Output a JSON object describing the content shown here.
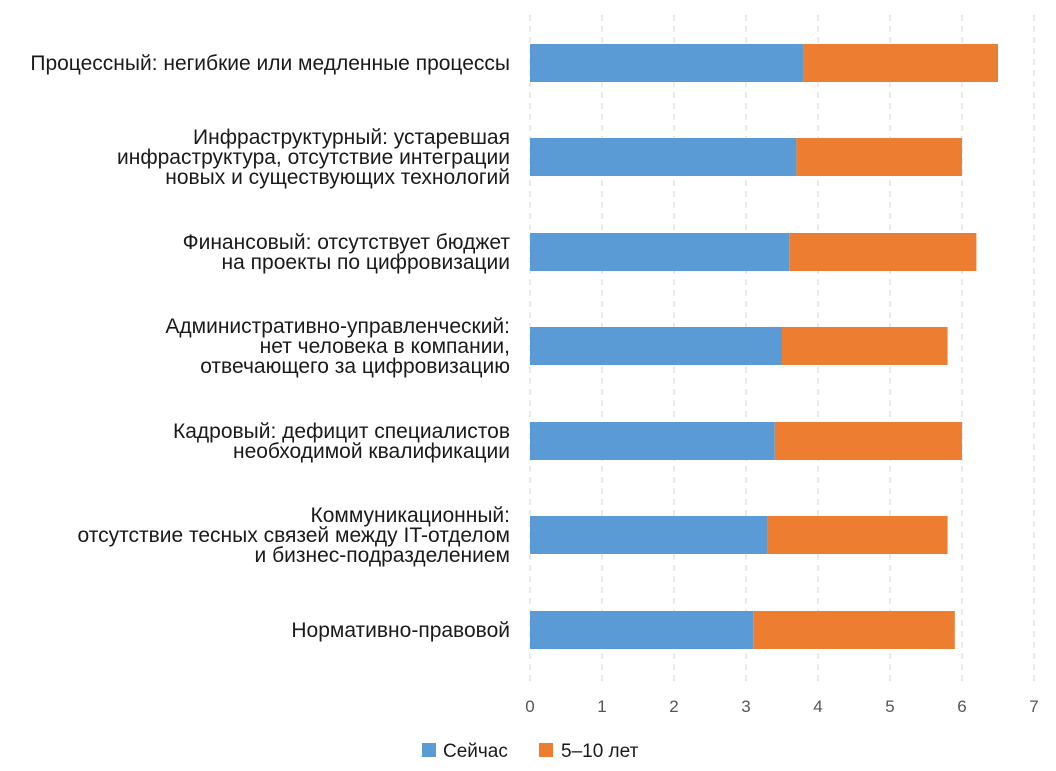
{
  "chart_data": {
    "type": "bar",
    "orientation": "horizontal",
    "stacked": true,
    "categories": [
      [
        "Процессный: негибкие или медленные процессы"
      ],
      [
        "Инфраструктурный: устаревшая",
        "инфраструктура, отсутствие интеграции",
        "новых и существующих технологий"
      ],
      [
        "Финансовый: отсутствует бюджет",
        "на проекты по цифровизации"
      ],
      [
        "Административно-управленческий:",
        "нет человека в компании,",
        "отвечающего за цифровизацию"
      ],
      [
        "Кадровый: дефицит специалистов",
        "необходимой квалификации"
      ],
      [
        "Коммуникационный:",
        "отсутствие тесных связей между IT-отделом",
        "и бизнес-подразделением"
      ],
      [
        "Нормативно-правовой"
      ]
    ],
    "series": [
      {
        "name": "Сейчас",
        "color": "#5b9bd5",
        "values": [
          3.8,
          3.7,
          3.6,
          3.5,
          3.4,
          3.3,
          3.1
        ]
      },
      {
        "name": "5–10 лет",
        "color": "#ed7d31",
        "values": [
          2.7,
          2.3,
          2.6,
          2.3,
          2.6,
          2.5,
          2.8
        ]
      }
    ],
    "xticks": [
      "0",
      "1",
      "2",
      "3",
      "4",
      "5",
      "6",
      "7"
    ],
    "xlim": [
      0,
      7
    ],
    "grid": "vertical dashed",
    "legend": "bottom-center"
  }
}
